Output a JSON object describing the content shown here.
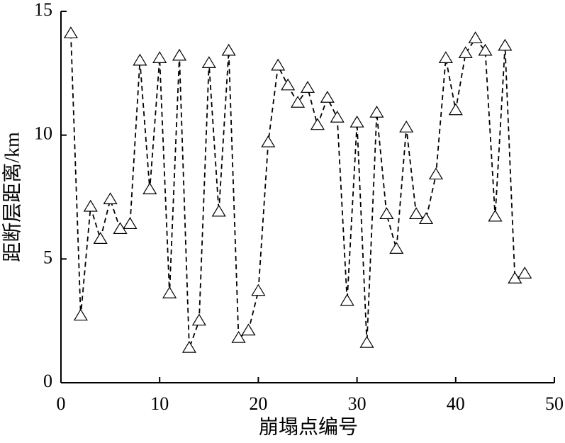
{
  "chart_data": {
    "type": "line",
    "x_label": "崩塌点编号",
    "y_label": "距断层距离/km",
    "x": [
      1,
      2,
      3,
      4,
      5,
      6,
      7,
      8,
      9,
      10,
      11,
      12,
      13,
      14,
      15,
      16,
      17,
      18,
      19,
      20,
      21,
      22,
      23,
      24,
      25,
      26,
      27,
      28,
      29,
      30,
      31,
      32,
      33,
      34,
      35,
      36,
      37,
      38,
      39,
      40,
      41,
      42,
      43,
      44,
      45,
      46,
      47
    ],
    "values": [
      14.1,
      2.7,
      7.1,
      5.8,
      7.4,
      6.2,
      6.4,
      13.0,
      7.8,
      13.1,
      3.6,
      13.2,
      1.4,
      2.5,
      12.9,
      6.9,
      13.4,
      1.8,
      2.1,
      3.7,
      9.7,
      12.8,
      12.0,
      11.3,
      11.9,
      10.4,
      11.5,
      10.7,
      3.3,
      10.5,
      1.6,
      10.9,
      6.8,
      5.4,
      10.3,
      6.8,
      6.6,
      8.4,
      13.1,
      11.0,
      13.3,
      13.9,
      13.4,
      6.7,
      13.6,
      4.2,
      4.4
    ],
    "color": "#000000",
    "xlim": [
      0,
      50
    ],
    "xticks": [
      0,
      10,
      20,
      30,
      40,
      50
    ],
    "ylim": [
      0,
      15
    ],
    "yticks": [
      0,
      5,
      10,
      15
    ]
  }
}
